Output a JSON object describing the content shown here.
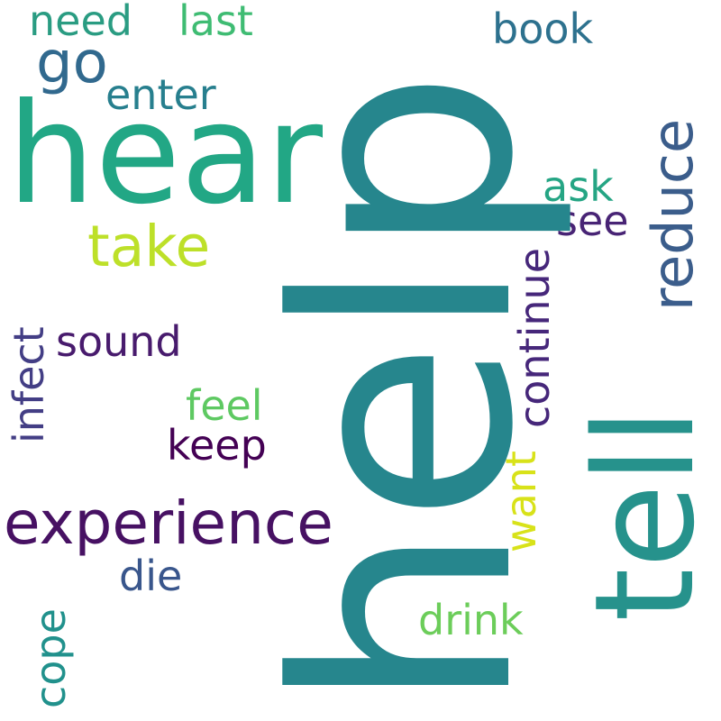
{
  "words": [
    {
      "key": "help",
      "text": "help",
      "color": "#26868d",
      "orientation": "vertical"
    },
    {
      "key": "hear",
      "text": "hear",
      "color": "#22a785",
      "orientation": "horizontal"
    },
    {
      "key": "tell",
      "text": "tell",
      "color": "#26928c",
      "orientation": "vertical"
    },
    {
      "key": "experience",
      "text": "experience",
      "color": "#471163",
      "orientation": "horizontal"
    },
    {
      "key": "take",
      "text": "take",
      "color": "#bde029",
      "orientation": "horizontal"
    },
    {
      "key": "reduce",
      "text": "reduce",
      "color": "#3b5d8b",
      "orientation": "vertical"
    },
    {
      "key": "continue",
      "text": "continue",
      "color": "#46277a",
      "orientation": "vertical"
    },
    {
      "key": "go",
      "text": "go",
      "color": "#31698e",
      "orientation": "horizontal"
    },
    {
      "key": "need",
      "text": "need",
      "color": "#2a9c82",
      "orientation": "horizontal"
    },
    {
      "key": "last",
      "text": "last",
      "color": "#3fbc73",
      "orientation": "horizontal"
    },
    {
      "key": "book",
      "text": "book",
      "color": "#2d718e",
      "orientation": "horizontal"
    },
    {
      "key": "enter",
      "text": "enter",
      "color": "#277f8e",
      "orientation": "horizontal"
    },
    {
      "key": "ask",
      "text": "ask",
      "color": "#25a584",
      "orientation": "horizontal"
    },
    {
      "key": "see",
      "text": "see",
      "color": "#482475",
      "orientation": "horizontal"
    },
    {
      "key": "infect",
      "text": "infect",
      "color": "#433e85",
      "orientation": "vertical"
    },
    {
      "key": "sound",
      "text": "sound",
      "color": "#481b6d",
      "orientation": "horizontal"
    },
    {
      "key": "feel",
      "text": "feel",
      "color": "#5ec962",
      "orientation": "horizontal"
    },
    {
      "key": "keep",
      "text": "keep",
      "color": "#440154",
      "orientation": "horizontal"
    },
    {
      "key": "want",
      "text": "want",
      "color": "#d8e219",
      "orientation": "vertical"
    },
    {
      "key": "die",
      "text": "die",
      "color": "#39568c",
      "orientation": "horizontal"
    },
    {
      "key": "cope",
      "text": "cope",
      "color": "#21918c",
      "orientation": "vertical"
    },
    {
      "key": "drink",
      "text": "drink",
      "color": "#6ccd5a",
      "orientation": "horizontal"
    }
  ]
}
